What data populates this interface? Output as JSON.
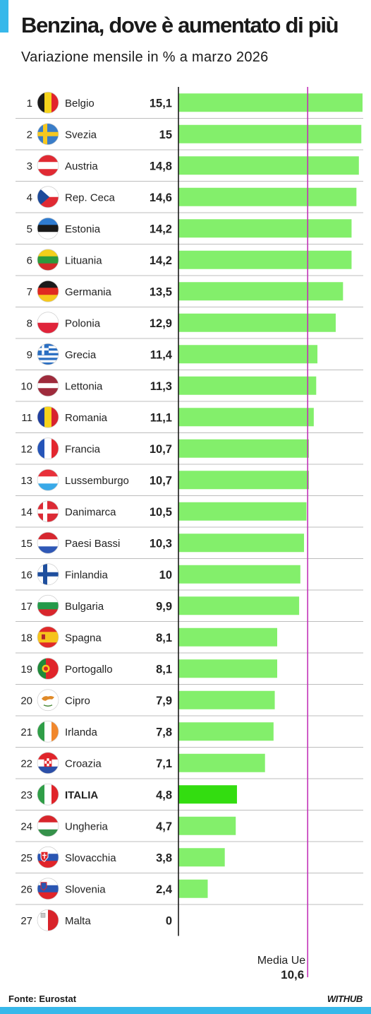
{
  "header": {
    "title": "Benzina, dove è aumentato di più",
    "subtitle": "Variazione mensile in % a marzo 2026"
  },
  "footer": {
    "source": "Fonte: Eurostat",
    "brand": "WITHUB"
  },
  "colors": {
    "accent": "#37b8ea",
    "bar": "#83ef6b",
    "bar_highlight": "#33dd10",
    "average_line": "#c232b8",
    "row_divider": "#bdbdbd"
  },
  "chart_data": {
    "type": "bar",
    "orientation": "horizontal",
    "title": "Benzina, dove è aumentato di più",
    "subtitle": "Variazione mensile in % a marzo 2026",
    "xlim": [
      0,
      15.1
    ],
    "ranks": [
      1,
      2,
      3,
      4,
      5,
      6,
      7,
      8,
      9,
      10,
      11,
      12,
      13,
      14,
      15,
      16,
      17,
      18,
      19,
      20,
      21,
      22,
      23,
      24,
      25,
      26,
      27
    ],
    "categories": [
      "Belgio",
      "Svezia",
      "Austria",
      "Rep. Ceca",
      "Estonia",
      "Lituania",
      "Germania",
      "Polonia",
      "Grecia",
      "Lettonia",
      "Romania",
      "Francia",
      "Lussemburgo",
      "Danimarca",
      "Paesi Bassi",
      "Finlandia",
      "Bulgaria",
      "Spagna",
      "Portogallo",
      "Cipro",
      "Irlanda",
      "Croazia",
      "ITALIA",
      "Ungheria",
      "Slovacchia",
      "Slovenia",
      "Malta"
    ],
    "values": [
      15.1,
      15,
      14.8,
      14.6,
      14.2,
      14.2,
      13.5,
      12.9,
      11.4,
      11.3,
      11.1,
      10.7,
      10.7,
      10.5,
      10.3,
      10,
      9.9,
      8.1,
      8.1,
      7.9,
      7.8,
      7.1,
      4.8,
      4.7,
      3.8,
      2.4,
      0
    ],
    "value_labels": [
      "15,1",
      "15",
      "14,8",
      "14,6",
      "14,2",
      "14,2",
      "13,5",
      "12,9",
      "11,4",
      "11,3",
      "11,1",
      "10,7",
      "10,7",
      "10,5",
      "10,3",
      "10",
      "9,9",
      "8,1",
      "8,1",
      "7,9",
      "7,8",
      "7,1",
      "4,8",
      "4,7",
      "3,8",
      "2,4",
      "0"
    ],
    "flag_icons": [
      "belgium-flag-icon",
      "sweden-flag-icon",
      "austria-flag-icon",
      "czech-republic-flag-icon",
      "estonia-flag-icon",
      "lithuania-flag-icon",
      "germany-flag-icon",
      "poland-flag-icon",
      "greece-flag-icon",
      "latvia-flag-icon",
      "romania-flag-icon",
      "france-flag-icon",
      "luxembourg-flag-icon",
      "denmark-flag-icon",
      "netherlands-flag-icon",
      "finland-flag-icon",
      "bulgaria-flag-icon",
      "spain-flag-icon",
      "portugal-flag-icon",
      "cyprus-flag-icon",
      "ireland-flag-icon",
      "croatia-flag-icon",
      "italy-flag-icon",
      "hungary-flag-icon",
      "slovakia-flag-icon",
      "slovenia-flag-icon",
      "malta-flag-icon"
    ],
    "highlight": "ITALIA",
    "average": {
      "label": "Media Ue",
      "value": 10.6,
      "value_label": "10,6"
    }
  }
}
